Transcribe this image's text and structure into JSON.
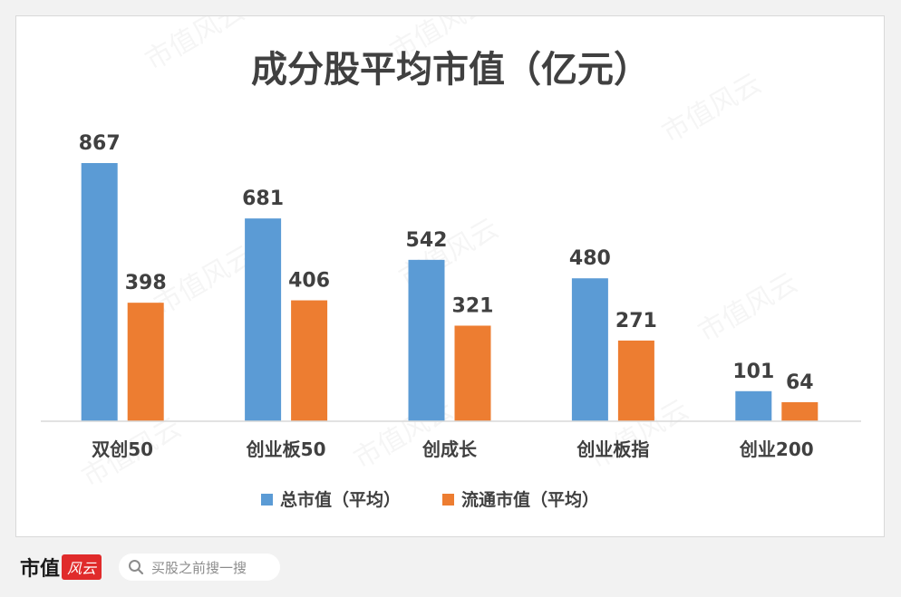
{
  "chart_data": {
    "type": "bar",
    "title": "成分股平均市值（亿元）",
    "categories": [
      "双创50",
      "创业板50",
      "创成长",
      "创业板指",
      "创业200"
    ],
    "series": [
      {
        "name": "总市值（平均）",
        "color": "#5b9bd5",
        "values": [
          867,
          681,
          542,
          480,
          101
        ]
      },
      {
        "name": "流通市值（平均）",
        "color": "#ed7d31",
        "values": [
          398,
          406,
          321,
          271,
          64
        ]
      }
    ],
    "ylim": [
      0,
      867
    ],
    "grid": false,
    "legend": "bottom"
  },
  "watermark": "市值风云",
  "footer": {
    "brand": "市值",
    "brand_mark": "风云",
    "search_placeholder": "买股之前搜一搜",
    "search_icon": "search-icon"
  }
}
